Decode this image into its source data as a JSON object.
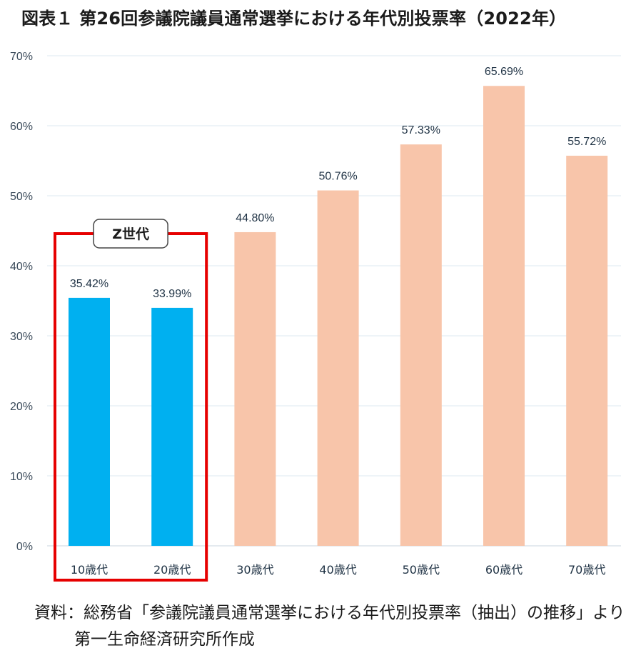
{
  "title": "図表１ 第26回参議院議員通常選挙における年代別投票率（2022年）",
  "source": {
    "line1": "資料：総務省「参議院議員通常選挙における年代別投票率（抽出）の推移」より",
    "line2": "第一生命経済研究所作成"
  },
  "chart_data": {
    "type": "bar",
    "title": "図表１ 第26回参議院議員通常選挙における年代別投票率（2022年）",
    "categories": [
      "10歳代",
      "20歳代",
      "30歳代",
      "40歳代",
      "50歳代",
      "60歳代",
      "70歳代"
    ],
    "values": [
      35.42,
      33.99,
      44.8,
      50.76,
      57.33,
      65.69,
      55.72
    ],
    "data_labels": [
      "35.42%",
      "33.99%",
      "44.80%",
      "50.76%",
      "57.33%",
      "65.69%",
      "55.72%"
    ],
    "y_ticks": [
      "0%",
      "10%",
      "20%",
      "30%",
      "40%",
      "50%",
      "60%",
      "70%"
    ],
    "ylim": [
      0,
      70
    ],
    "grid": true,
    "colors": {
      "highlight": "#00b0f0",
      "default": "#f8c5aa",
      "callout": "#e60000",
      "grid": "#dce8f0"
    },
    "highlighted_categories": [
      "10歳代",
      "20歳代"
    ],
    "callout_label": "Z世代"
  }
}
